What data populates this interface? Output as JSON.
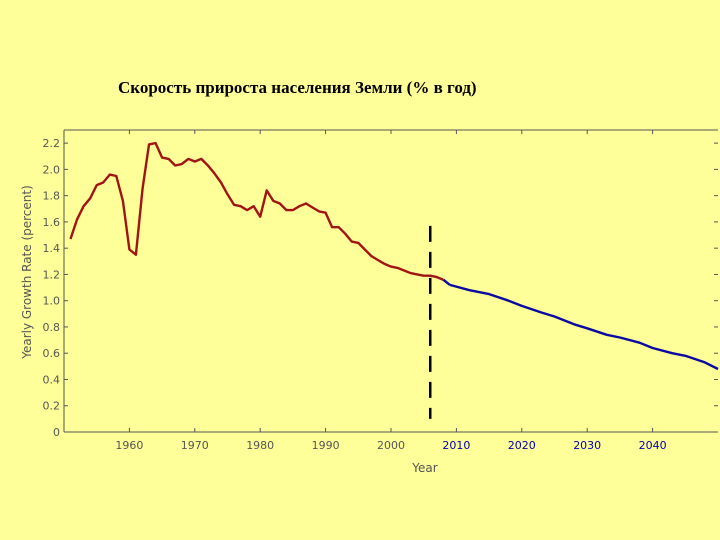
{
  "slide": {
    "title": "Скорость прироста населения Земли (% в год)"
  },
  "colors": {
    "background": "#ffff99",
    "historical": "#a01414",
    "projected": "#0a0aa0",
    "divider": "#000000"
  },
  "chart_data": {
    "type": "line",
    "title": "Скорость прироста населения Земли (% в год)",
    "xlabel": "Year",
    "ylabel": "Yearly Growth Rate (percent)",
    "xlim": [
      1950,
      2050
    ],
    "ylim": [
      0,
      2.3
    ],
    "xticks": [
      {
        "value": 1960,
        "label": "1960"
      },
      {
        "value": 1970,
        "label": "1970"
      },
      {
        "value": 1980,
        "label": "1980"
      },
      {
        "value": 1990,
        "label": "1990"
      },
      {
        "value": 2000,
        "label": "2000"
      },
      {
        "value": 2010,
        "label": "2010"
      },
      {
        "value": 2020,
        "label": "2020"
      },
      {
        "value": 2030,
        "label": "2030"
      },
      {
        "value": 2040,
        "label": "2040"
      }
    ],
    "yticks": [
      {
        "value": 0,
        "label": "0"
      },
      {
        "value": 0.2,
        "label": "0.2"
      },
      {
        "value": 0.4,
        "label": "0.4"
      },
      {
        "value": 0.6,
        "label": "0.6"
      },
      {
        "value": 0.8,
        "label": "0.8"
      },
      {
        "value": 1.0,
        "label": "1.0"
      },
      {
        "value": 1.2,
        "label": "1.2"
      },
      {
        "value": 1.4,
        "label": "1.4"
      },
      {
        "value": 1.6,
        "label": "1.6"
      },
      {
        "value": 1.8,
        "label": "1.8"
      },
      {
        "value": 2.0,
        "label": "2.0"
      },
      {
        "value": 2.2,
        "label": "2.2"
      }
    ],
    "divider_x": 2006,
    "grid": false,
    "series": [
      {
        "color": "#a01414",
        "x": [
          1951,
          1952,
          1953,
          1954,
          1955,
          1956,
          1957,
          1958,
          1959,
          1960,
          1961,
          1962,
          1963,
          1964,
          1965,
          1966,
          1967,
          1968,
          1969,
          1970,
          1971,
          1972,
          1973,
          1974,
          1975,
          1976,
          1977,
          1978,
          1979,
          1980,
          1981,
          1982,
          1983,
          1984,
          1985,
          1986,
          1987,
          1988,
          1989,
          1990,
          1991,
          1992,
          1993,
          1994,
          1995,
          1996,
          1997,
          1998,
          1999,
          2000,
          2001,
          2002,
          2003,
          2004,
          2005,
          2006,
          2007,
          2008
        ],
        "values": [
          1.47,
          1.62,
          1.72,
          1.78,
          1.88,
          1.9,
          1.96,
          1.95,
          1.76,
          1.39,
          1.35,
          1.85,
          2.19,
          2.2,
          2.09,
          2.08,
          2.03,
          2.04,
          2.08,
          2.06,
          2.08,
          2.03,
          1.97,
          1.9,
          1.81,
          1.73,
          1.72,
          1.69,
          1.72,
          1.64,
          1.84,
          1.76,
          1.74,
          1.69,
          1.69,
          1.72,
          1.74,
          1.71,
          1.68,
          1.67,
          1.56,
          1.56,
          1.51,
          1.45,
          1.44,
          1.39,
          1.34,
          1.31,
          1.28,
          1.26,
          1.25,
          1.23,
          1.21,
          1.2,
          1.19,
          1.19,
          1.18,
          1.16
        ]
      },
      {
        "color": "#0a0aa0",
        "x": [
          2009,
          2012,
          2015,
          2018,
          2020,
          2023,
          2025,
          2028,
          2030,
          2033,
          2035,
          2038,
          2040,
          2043,
          2045,
          2048,
          2050
        ],
        "values": [
          1.12,
          1.08,
          1.05,
          1.0,
          0.96,
          0.91,
          0.88,
          0.82,
          0.79,
          0.74,
          0.72,
          0.68,
          0.64,
          0.6,
          0.58,
          0.53,
          0.48
        ]
      }
    ]
  }
}
